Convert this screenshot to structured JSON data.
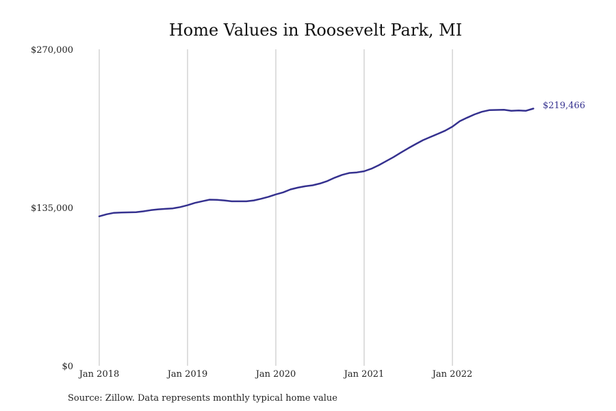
{
  "chart_data": {
    "type": "line",
    "title": "Home Values in Roosevelt Park, MI",
    "xlabel": "",
    "ylabel": "",
    "ylim": [
      0,
      270000
    ],
    "y_ticks": [
      {
        "value": 0,
        "label": "$0"
      },
      {
        "value": 135000,
        "label": "$135,000"
      },
      {
        "value": 270000,
        "label": "$270,000"
      }
    ],
    "x_ticks": [
      {
        "value": "2018-01",
        "label": "Jan 2018"
      },
      {
        "value": "2019-01",
        "label": "Jan 2019"
      },
      {
        "value": "2020-01",
        "label": "Jan 2020"
      },
      {
        "value": "2021-01",
        "label": "Jan 2021"
      },
      {
        "value": "2022-01",
        "label": "Jan 2022"
      }
    ],
    "grid": {
      "vertical": true,
      "horizontal": false
    },
    "line_color": "#35318f",
    "grid_color": "#bdbdbd",
    "end_label": "$219,466",
    "source": "Source: Zillow. Data represents monthly typical home value",
    "series": [
      {
        "x": [
          "2018-01",
          "2018-02",
          "2018-03",
          "2018-04",
          "2018-05",
          "2018-06",
          "2018-07",
          "2018-08",
          "2018-09",
          "2018-10",
          "2018-11",
          "2018-12",
          "2019-01",
          "2019-02",
          "2019-03",
          "2019-04",
          "2019-05",
          "2019-06",
          "2019-07",
          "2019-08",
          "2019-09",
          "2019-10",
          "2019-11",
          "2019-12",
          "2020-01",
          "2020-02",
          "2020-03",
          "2020-04",
          "2020-05",
          "2020-06",
          "2020-07",
          "2020-08",
          "2020-09",
          "2020-10",
          "2020-11",
          "2020-12",
          "2021-01",
          "2021-02",
          "2021-03",
          "2021-04",
          "2021-05",
          "2021-06",
          "2021-07",
          "2021-08",
          "2021-09",
          "2021-10",
          "2021-11",
          "2021-12",
          "2022-01",
          "2022-02",
          "2022-03",
          "2022-04",
          "2022-05",
          "2022-06",
          "2022-07",
          "2022-08",
          "2022-09",
          "2022-10",
          "2022-11",
          "2022-12"
        ],
        "values": [
          127500,
          129300,
          130500,
          130800,
          130900,
          131000,
          131800,
          132800,
          133500,
          133900,
          134300,
          135400,
          137000,
          139000,
          140400,
          141700,
          141600,
          141100,
          140300,
          140300,
          140300,
          141100,
          142500,
          144200,
          146200,
          148000,
          150500,
          152000,
          153200,
          154000,
          155500,
          157600,
          160500,
          162900,
          164500,
          165000,
          166000,
          168200,
          171200,
          174600,
          178100,
          181900,
          185600,
          189100,
          192500,
          195200,
          197800,
          200600,
          204000,
          208700,
          211700,
          214500,
          216700,
          218100,
          218300,
          218400,
          217500,
          217800,
          217600,
          219466
        ]
      }
    ]
  }
}
